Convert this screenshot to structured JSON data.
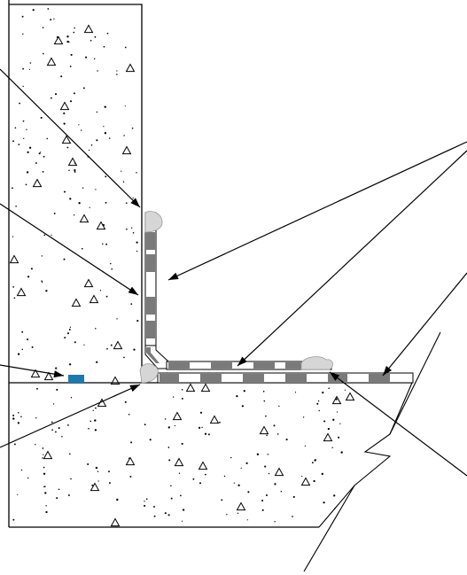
{
  "diagram": {
    "subject": "",
    "labels": [],
    "colors": {
      "outline": "#000000",
      "membrane_dark": "#7a7a7a",
      "membrane_light": "#ffffff",
      "sealant": "#d6d6d6",
      "accent_block": "#1a7ab0",
      "background": "#ffffff"
    },
    "icons": {
      "aggregate": "triangle-aggregate-icon",
      "speckle": "dot-speckle-icon"
    }
  }
}
